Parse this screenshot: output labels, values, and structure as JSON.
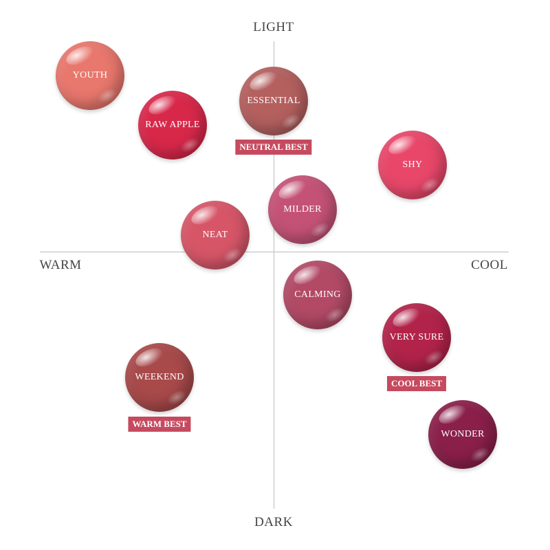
{
  "axes": {
    "top": "LIGHT",
    "bottom": "DARK",
    "left": "WARM",
    "right": "COOL"
  },
  "shades": [
    {
      "name": "YOUTH",
      "color": "#e8776d"
    },
    {
      "name": "RAW APPLE",
      "color": "#d8284a"
    },
    {
      "name": "ESSENTIAL",
      "color": "#b3605f"
    },
    {
      "name": "SHY",
      "color": "#e8476a"
    },
    {
      "name": "MILDER",
      "color": "#c45277"
    },
    {
      "name": "NEAT",
      "color": "#d65668"
    },
    {
      "name": "CALMING",
      "color": "#b24a66"
    },
    {
      "name": "VERY SURE",
      "color": "#b2234a"
    },
    {
      "name": "WEEKEND",
      "color": "#a8494a"
    },
    {
      "name": "WONDER",
      "color": "#8a1f4a"
    }
  ],
  "badges": {
    "neutral": "NEUTRAL BEST",
    "cool": "COOL BEST",
    "warm": "WARM BEST"
  },
  "badge_color": "#c64a5f"
}
